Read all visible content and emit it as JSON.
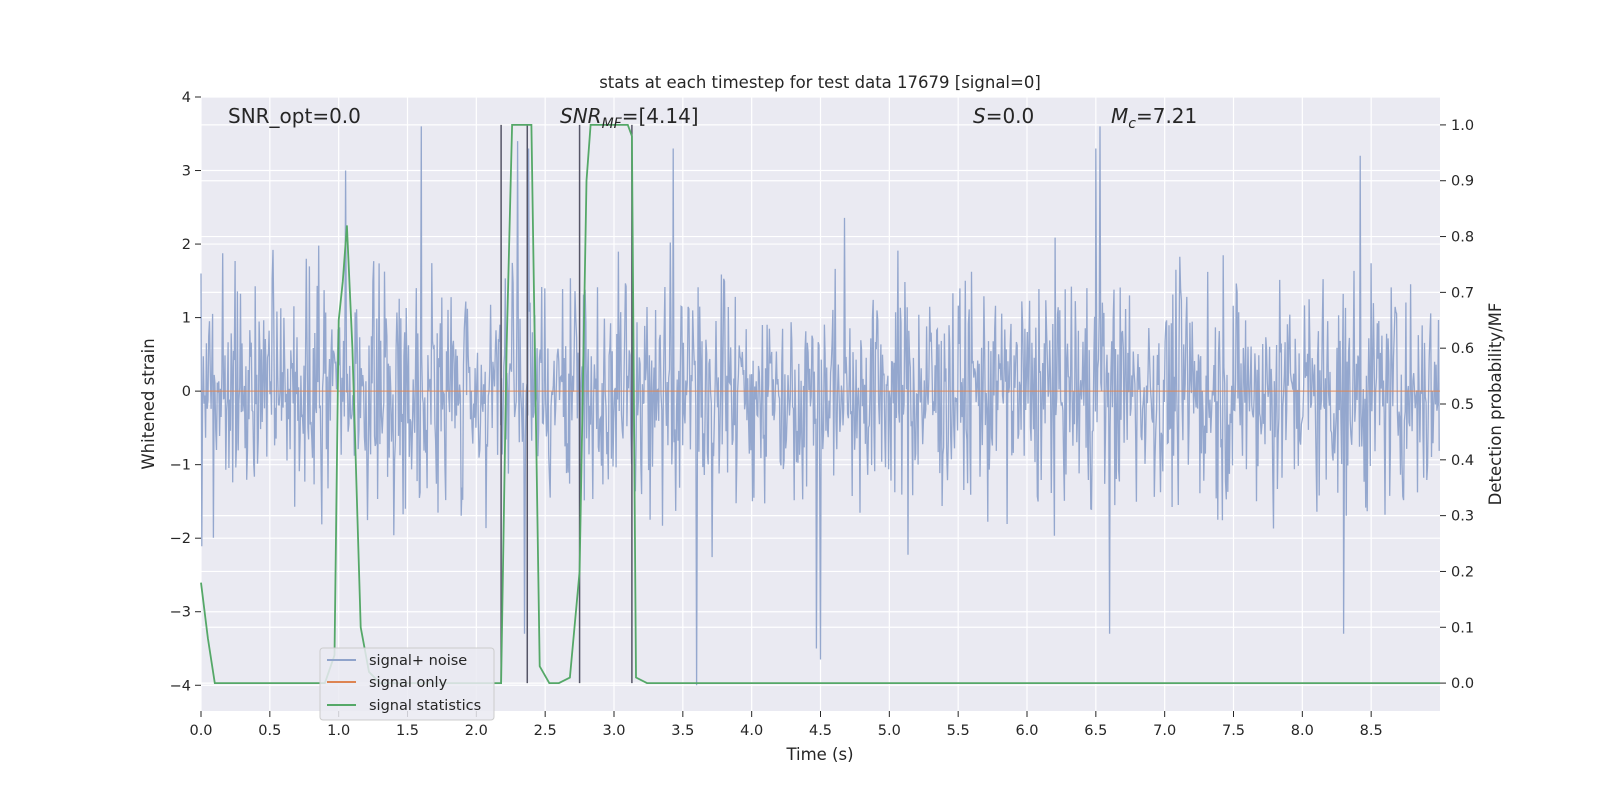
{
  "chart_data": {
    "type": "line",
    "title": "stats at each timestep for test data 17679 [signal=0]",
    "xlabel": "Time (s)",
    "ylabel_left": "Whitened strain",
    "ylabel_right": "Detection probability/MF",
    "xlim": [
      0.0,
      9.0
    ],
    "ylim_left": [
      -4.35,
      4.0
    ],
    "ylim_right": [
      -0.05,
      1.05
    ],
    "x_ticks": [
      "0.0",
      "0.5",
      "1.0",
      "1.5",
      "2.0",
      "2.5",
      "3.0",
      "3.5",
      "4.0",
      "4.5",
      "5.0",
      "5.5",
      "6.0",
      "6.5",
      "7.0",
      "7.5",
      "8.0",
      "8.5"
    ],
    "y_ticks_left": [
      "4",
      "3",
      "2",
      "1",
      "0",
      "−1",
      "−2",
      "−3",
      "−4"
    ],
    "y_ticks_right": [
      "1.0",
      "0.9",
      "0.8",
      "0.7",
      "0.6",
      "0.5",
      "0.4",
      "0.3",
      "0.2",
      "0.1",
      "0.0"
    ],
    "grid": true,
    "legend_position": "lower-left",
    "annotations": {
      "snr_opt": "SNR_opt=0.0",
      "snr_mf_base": "SNR",
      "snr_mf_italic_sub": "MF",
      "snr_mf_value": "=[4.14]",
      "s_italic": "S",
      "s_value": "=0.0",
      "mc_base": "M",
      "mc_sub": "c",
      "mc_value": "=7.21"
    },
    "series": [
      {
        "name": "signal+ noise",
        "axis": "left",
        "color": "#8fa3cb",
        "description_range": [
          -4.0,
          3.6
        ],
        "notable_peaks": [
          {
            "t": 0.0,
            "v": 1.6
          },
          {
            "t": 1.05,
            "v": 3.0
          },
          {
            "t": 1.6,
            "v": 3.6
          },
          {
            "t": 2.3,
            "v": 3.4
          },
          {
            "t": 2.38,
            "v": 3.3
          },
          {
            "t": 3.43,
            "v": 3.3
          },
          {
            "t": 6.5,
            "v": 3.3
          },
          {
            "t": 6.53,
            "v": 3.6
          },
          {
            "t": 8.42,
            "v": 3.2
          },
          {
            "t": 4.47,
            "v": -3.5
          },
          {
            "t": 4.5,
            "v": -3.65
          },
          {
            "t": 3.6,
            "v": -4.0
          },
          {
            "t": 6.6,
            "v": -3.3
          },
          {
            "t": 8.3,
            "v": -3.3
          },
          {
            "t": 2.35,
            "v": -3.3
          }
        ]
      },
      {
        "name": "signal only",
        "axis": "left",
        "color": "#dd8452",
        "x": [
          0.0,
          9.0
        ],
        "y": [
          0.0,
          0.0
        ]
      },
      {
        "name": "signal statistics",
        "axis": "right",
        "color": "#55a868",
        "x": [
          0.0,
          0.05,
          0.1,
          0.9,
          0.97,
          1.0,
          1.03,
          1.06,
          1.1,
          1.16,
          1.22,
          1.3,
          1.8,
          2.18,
          2.22,
          2.26,
          2.3,
          2.34,
          2.37,
          2.4,
          2.46,
          2.53,
          2.6,
          2.68,
          2.75,
          2.8,
          2.83,
          2.95,
          3.05,
          3.1,
          3.13,
          3.16,
          3.24,
          9.0
        ],
        "y": [
          0.18,
          0.08,
          0.0,
          0.0,
          0.05,
          0.65,
          0.72,
          0.82,
          0.6,
          0.1,
          0.02,
          0.0,
          0.0,
          0.0,
          0.6,
          1.0,
          1.0,
          1.0,
          1.0,
          1.0,
          0.03,
          0.0,
          0.0,
          0.01,
          0.2,
          0.9,
          1.0,
          1.0,
          1.0,
          1.0,
          0.98,
          0.01,
          0.0,
          0.0
        ]
      }
    ],
    "vertical_markers": [
      {
        "t": 2.18,
        "ymax": 1.0,
        "color": "#555566"
      },
      {
        "t": 2.37,
        "ymax": 1.0,
        "color": "#555566"
      },
      {
        "t": 2.75,
        "ymax": 1.0,
        "color": "#555566"
      },
      {
        "t": 3.13,
        "ymax": 1.0,
        "color": "#555566"
      }
    ],
    "colors": {
      "plot_background": "#eaeaf2",
      "grid": "#ffffff",
      "text": "#262626"
    }
  }
}
